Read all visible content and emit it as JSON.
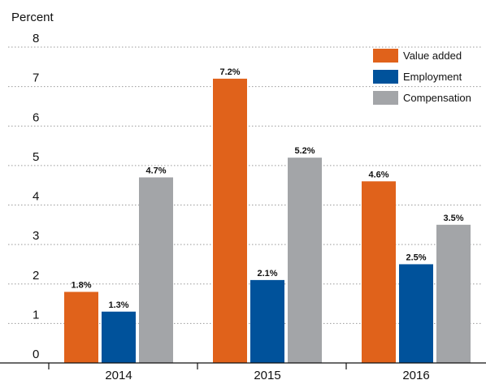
{
  "chart_data": {
    "type": "bar",
    "title": "",
    "ylabel": "Percent",
    "xlabel": "",
    "ylim": [
      0,
      8
    ],
    "yticks": [
      0,
      1,
      2,
      3,
      4,
      5,
      6,
      7,
      8
    ],
    "grid": "horizontal dotted",
    "legend_position": "top-right",
    "categories": [
      "2014",
      "2015",
      "2016"
    ],
    "series": [
      {
        "name": "Value added",
        "color": "#e0621b",
        "values": [
          1.8,
          7.2,
          4.6
        ],
        "labels": [
          "1.8%",
          "7.2%",
          "4.6%"
        ]
      },
      {
        "name": "Employment",
        "color": "#00529b",
        "values": [
          1.3,
          2.1,
          2.5
        ],
        "labels": [
          "1.3%",
          "2.1%",
          "2.5%"
        ]
      },
      {
        "name": "Compensation",
        "color": "#a3a5a8",
        "values": [
          4.7,
          5.2,
          3.5
        ],
        "labels": [
          "4.7%",
          "5.2%",
          "3.5%"
        ]
      }
    ]
  }
}
